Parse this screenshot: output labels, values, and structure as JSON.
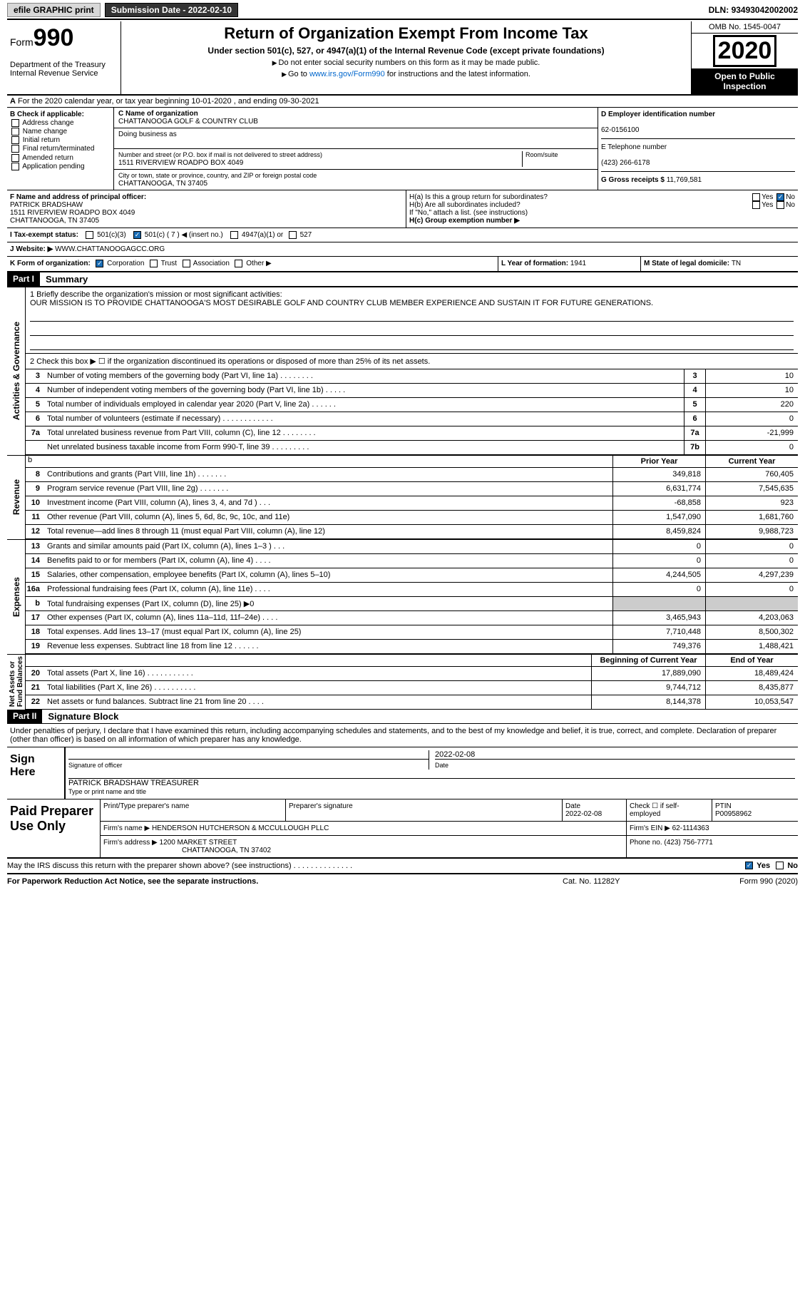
{
  "topbar": {
    "efile": "efile GRAPHIC print",
    "sub_label": "Submission Date - ",
    "sub_date": "2022-02-10",
    "dln_label": "DLN: ",
    "dln": "93493042002002"
  },
  "header": {
    "form": "Form",
    "num": "990",
    "title": "Return of Organization Exempt From Income Tax",
    "subtitle": "Under section 501(c), 527, or 4947(a)(1) of the Internal Revenue Code (except private foundations)",
    "note1": "Do not enter social security numbers on this form as it may be made public.",
    "note2_pre": "Go to ",
    "note2_link": "www.irs.gov/Form990",
    "note2_post": " for instructions and the latest information.",
    "dept": "Department of the Treasury\nInternal Revenue Service",
    "omb": "OMB No. 1545-0047",
    "year": "2020",
    "inspect": "Open to Public Inspection"
  },
  "rowA": {
    "text": "For the 2020 calendar year, or tax year beginning 10-01-2020    , and ending 09-30-2021"
  },
  "colB": {
    "title": "B Check if applicable:",
    "items": [
      "Address change",
      "Name change",
      "Initial return",
      "Final return/terminated",
      "Amended return",
      "Application pending"
    ]
  },
  "colC": {
    "name_label": "C Name of organization",
    "name": "CHATTANOOGA GOLF & COUNTRY CLUB",
    "dba_label": "Doing business as",
    "dba": "",
    "addr_label": "Number and street (or P.O. box if mail is not delivered to street address)",
    "room_label": "Room/suite",
    "addr": "1511 RIVERVIEW ROADPO BOX 4049",
    "city_label": "City or town, state or province, country, and ZIP or foreign postal code",
    "city": "CHATTANOOGA, TN  37405"
  },
  "colD": {
    "ein_label": "D Employer identification number",
    "ein": "62-0156100",
    "phone_label": "E Telephone number",
    "phone": "(423) 266-6178",
    "gross_label": "G Gross receipts $ ",
    "gross": "11,769,581"
  },
  "rowF": {
    "label": "F  Name and address of principal officer:",
    "name": "PATRICK BRADSHAW",
    "addr": "1511 RIVERVIEW ROADPO BOX 4049",
    "city": "CHATTANOOGA, TN  37405"
  },
  "rowH": {
    "ha": "H(a)  Is this a group return for subordinates?",
    "ha_yes": "Yes",
    "ha_no": "No",
    "hb": "H(b)  Are all subordinates included?",
    "hb_yes": "Yes",
    "hb_no": "No",
    "hb_note": "If \"No,\" attach a list. (see instructions)",
    "hc": "H(c)  Group exemption number ▶"
  },
  "rowI": {
    "label": "I    Tax-exempt status:",
    "o1": "501(c)(3)",
    "o2": "501(c) ( 7 ) ◀ (insert no.)",
    "o3": "4947(a)(1) or",
    "o4": "527"
  },
  "rowJ": {
    "label": "J   Website: ▶",
    "val": "WWW.CHATTANOOGAGCC.ORG"
  },
  "rowK": {
    "label": "K Form of organization:",
    "o1": "Corporation",
    "o2": "Trust",
    "o3": "Association",
    "o4": "Other ▶"
  },
  "rowL": {
    "label": "L Year of formation: ",
    "val": "1941"
  },
  "rowM": {
    "label": "M State of legal domicile: ",
    "val": "TN"
  },
  "part1": {
    "hdr": "Part I",
    "title": "Summary"
  },
  "mission": {
    "l1": "1   Briefly describe the organization's mission or most significant activities:",
    "text": "OUR MISSION IS TO PROVIDE CHATTANOOGA'S MOST DESIRABLE GOLF AND COUNTRY CLUB MEMBER EXPERIENCE AND SUSTAIN IT FOR FUTURE GENERATIONS.",
    "l2": "2   Check this box ▶ ☐  if the organization discontinued its operations or disposed of more than 25% of its net assets."
  },
  "gov_lines": [
    {
      "n": "3",
      "d": "Number of voting members of the governing body (Part VI, line 1a)   .    .    .    .    .    .    .    .",
      "b": "3",
      "v": "10"
    },
    {
      "n": "4",
      "d": "Number of independent voting members of the governing body (Part VI, line 1b)   .    .    .    .    .",
      "b": "4",
      "v": "10"
    },
    {
      "n": "5",
      "d": "Total number of individuals employed in calendar year 2020 (Part V, line 2a)   .    .    .    .    .    .",
      "b": "5",
      "v": "220"
    },
    {
      "n": "6",
      "d": "Total number of volunteers (estimate if necessary)   .    .    .    .    .    .    .    .    .    .    .    .",
      "b": "6",
      "v": "0"
    },
    {
      "n": "7a",
      "d": "Total unrelated business revenue from Part VIII, column (C), line 12   .    .    .    .    .    .    .    .",
      "b": "7a",
      "v": "-21,999"
    },
    {
      "n": "",
      "d": "Net unrelated business taxable income from Form 990-T, line 39   .    .    .    .    .    .    .    .    .",
      "b": "7b",
      "v": "0"
    }
  ],
  "col_hdrs": {
    "prior": "Prior Year",
    "current": "Current Year",
    "begin": "Beginning of Current Year",
    "end": "End of Year"
  },
  "rev_lines": [
    {
      "n": "8",
      "d": "Contributions and grants (Part VIII, line 1h)   .    .    .    .    .    .    .",
      "p": "349,818",
      "c": "760,405"
    },
    {
      "n": "9",
      "d": "Program service revenue (Part VIII, line 2g)   .    .    .    .    .    .    .",
      "p": "6,631,774",
      "c": "7,545,635"
    },
    {
      "n": "10",
      "d": "Investment income (Part VIII, column (A), lines 3, 4, and 7d )   .    .    .",
      "p": "-68,858",
      "c": "923"
    },
    {
      "n": "11",
      "d": "Other revenue (Part VIII, column (A), lines 5, 6d, 8c, 9c, 10c, and 11e)",
      "p": "1,547,090",
      "c": "1,681,760"
    },
    {
      "n": "12",
      "d": "Total revenue—add lines 8 through 11 (must equal Part VIII, column (A), line 12)",
      "p": "8,459,824",
      "c": "9,988,723"
    }
  ],
  "exp_lines": [
    {
      "n": "13",
      "d": "Grants and similar amounts paid (Part IX, column (A), lines 1–3 )   .    .    .",
      "p": "0",
      "c": "0"
    },
    {
      "n": "14",
      "d": "Benefits paid to or for members (Part IX, column (A), line 4)   .    .    .    .",
      "p": "0",
      "c": "0"
    },
    {
      "n": "15",
      "d": "Salaries, other compensation, employee benefits (Part IX, column (A), lines 5–10)",
      "p": "4,244,505",
      "c": "4,297,239"
    },
    {
      "n": "16a",
      "d": "Professional fundraising fees (Part IX, column (A), line 11e)   .    .    .    .",
      "p": "0",
      "c": "0"
    },
    {
      "n": "b",
      "d": "Total fundraising expenses (Part IX, column (D), line 25) ▶0",
      "p": "",
      "c": "",
      "shade": true
    },
    {
      "n": "17",
      "d": "Other expenses (Part IX, column (A), lines 11a–11d, 11f–24e)   .    .    .    .",
      "p": "3,465,943",
      "c": "4,203,063"
    },
    {
      "n": "18",
      "d": "Total expenses. Add lines 13–17 (must equal Part IX, column (A), line 25)",
      "p": "7,710,448",
      "c": "8,500,302"
    },
    {
      "n": "19",
      "d": "Revenue less expenses. Subtract line 18 from line 12   .    .    .    .    .    .",
      "p": "749,376",
      "c": "1,488,421"
    }
  ],
  "na_lines": [
    {
      "n": "20",
      "d": "Total assets (Part X, line 16)   .    .    .    .    .    .    .    .    .    .    .",
      "p": "17,889,090",
      "c": "18,489,424"
    },
    {
      "n": "21",
      "d": "Total liabilities (Part X, line 26)   .    .    .    .    .    .    .    .    .    .",
      "p": "9,744,712",
      "c": "8,435,877"
    },
    {
      "n": "22",
      "d": "Net assets or fund balances. Subtract line 21 from line 20   .    .    .    .",
      "p": "8,144,378",
      "c": "10,053,547"
    }
  ],
  "sides": {
    "gov": "Activities & Governance",
    "rev": "Revenue",
    "exp": "Expenses",
    "na": "Net Assets or\nFund Balances"
  },
  "part2": {
    "hdr": "Part II",
    "title": "Signature Block"
  },
  "sig": {
    "decl": "Under penalties of perjury, I declare that I have examined this return, including accompanying schedules and statements, and to the best of my knowledge and belief, it is true, correct, and complete. Declaration of preparer (other than officer) is based on all information of which preparer has any knowledge.",
    "sign_here": "Sign Here",
    "sig_label": "Signature of officer",
    "date_label": "Date",
    "date": "2022-02-08",
    "name": "PATRICK BRADSHAW TREASURER",
    "name_label": "Type or print name and title"
  },
  "prep": {
    "title": "Paid Preparer Use Only",
    "h1": "Print/Type preparer's name",
    "h2": "Preparer's signature",
    "h3": "Date",
    "h3v": "2022-02-08",
    "h4": "Check ☐ if self-employed",
    "h5": "PTIN",
    "h5v": "P00958962",
    "firm_label": "Firm's name    ▶",
    "firm": "HENDERSON HUTCHERSON & MCCULLOUGH PLLC",
    "ein_label": "Firm's EIN ▶",
    "ein": "62-1114363",
    "addr_label": "Firm's address ▶",
    "addr": "1200 MARKET STREET",
    "city": "CHATTANOOGA, TN  37402",
    "phone_label": "Phone no. ",
    "phone": "(423) 756-7771"
  },
  "discuss": {
    "q": "May the IRS discuss this return with the preparer shown above? (see instructions)   .    .    .    .    .    .    .    .    .    .    .    .    .    .",
    "yes": "Yes",
    "no": "No"
  },
  "footer": {
    "l": "For Paperwork Reduction Act Notice, see the separate instructions.",
    "m": "Cat. No. 11282Y",
    "r": "Form 990 (2020)"
  }
}
